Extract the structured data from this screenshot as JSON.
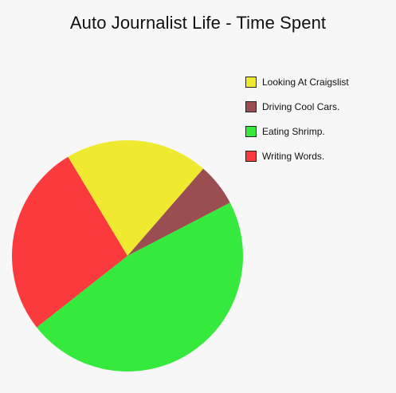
{
  "chart_data": {
    "type": "pie",
    "title": "Auto Journalist Life - Time Spent",
    "slices": [
      {
        "label": "Looking At Craigslist",
        "value": 20,
        "color": "#efea2f"
      },
      {
        "label": "Driving Cool Cars.",
        "value": 6,
        "color": "#9a4e52"
      },
      {
        "label": "Eating Shrimp.",
        "value": 47,
        "color": "#35ea3c"
      },
      {
        "label": "Writing Words.",
        "value": 27,
        "color": "#fb3a3e"
      }
    ],
    "legend_position": "top-right"
  }
}
